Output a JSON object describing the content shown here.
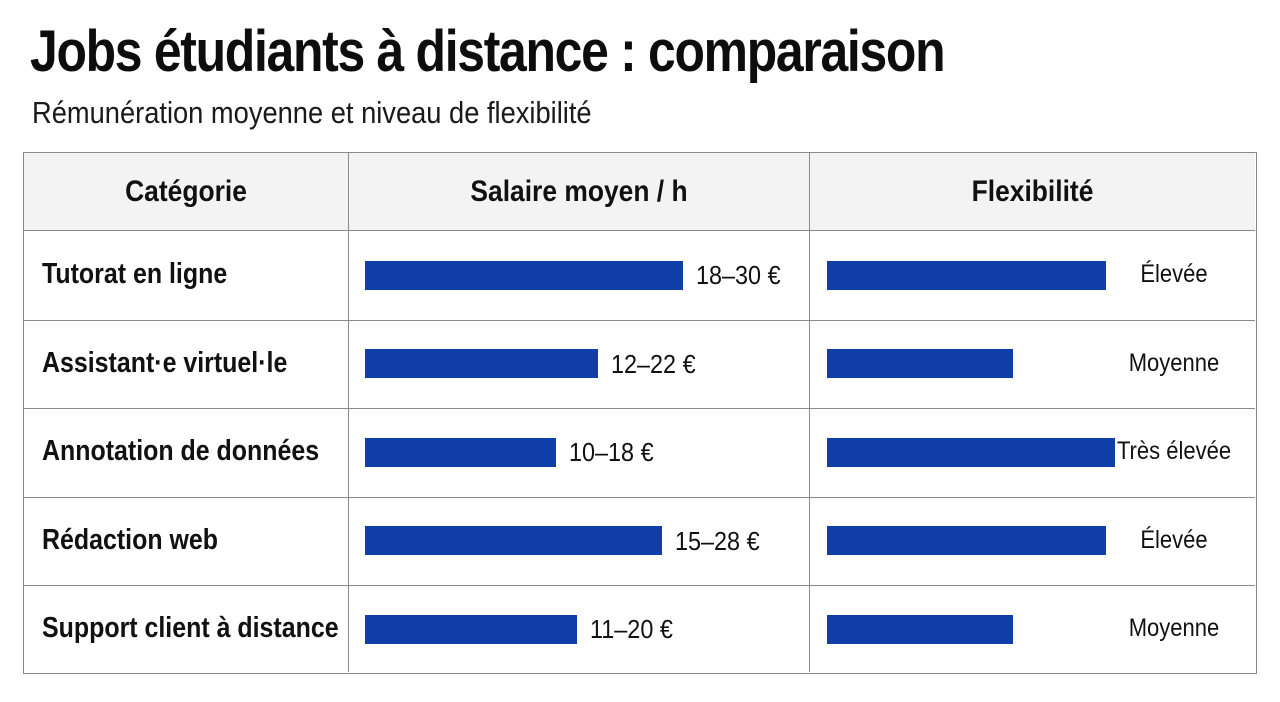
{
  "chart_data": {
    "type": "table",
    "title": "Jobs étudiants à distance : comparaison",
    "subtitle": "Rémunération moyenne et niveau de flexibilité",
    "columns": [
      "Catégorie",
      "Salaire moyen / h",
      "Flexibilité"
    ],
    "salary_scale_max": 30,
    "flexibility_scale": {
      "Moyenne": 2,
      "Élevée": 3,
      "Très élevée": 3.1
    },
    "bar_color": "#0f3ea8",
    "rows": [
      {
        "category": "Tutorat en ligne",
        "salary_label": "18–30 €",
        "salary_min": 18,
        "salary_max": 30,
        "flexibility": "Élevée"
      },
      {
        "category": "Assistant·e virtuel·le",
        "salary_label": "12–22 €",
        "salary_min": 12,
        "salary_max": 22,
        "flexibility": "Moyenne"
      },
      {
        "category": "Annotation de données",
        "salary_label": "10–18 €",
        "salary_min": 10,
        "salary_max": 18,
        "flexibility": "Très élevée"
      },
      {
        "category": "Rédaction web",
        "salary_label": "15–28 €",
        "salary_min": 15,
        "salary_max": 28,
        "flexibility": "Élevée"
      },
      {
        "category": "Support client à distance",
        "salary_label": "11–20 €",
        "salary_min": 11,
        "salary_max": 20,
        "flexibility": "Moyenne"
      }
    ]
  }
}
